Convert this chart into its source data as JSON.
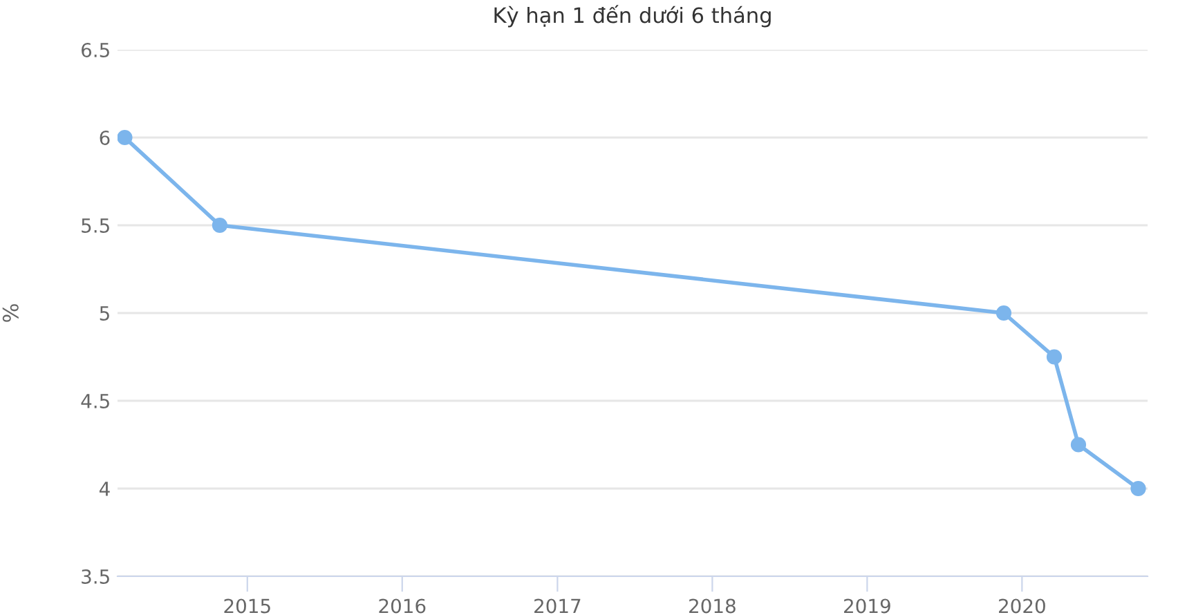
{
  "chart_data": {
    "type": "line",
    "title": "Kỳ hạn 1 đến dưới 6 tháng",
    "ylabel": "%",
    "x": [
      "2014-03-18",
      "2014-10-28",
      "2019-11-19",
      "2020-03-17",
      "2020-05-13",
      "2020-10-01"
    ],
    "series": [
      {
        "color": "#7cb5ec",
        "values": [
          6,
          5.5,
          5,
          4.75,
          4.25,
          4
        ]
      }
    ],
    "xlim": [
      "2014-03-01",
      "2020-10-23"
    ],
    "xticks": [
      {
        "value": "2015-01-01",
        "label": "2015"
      },
      {
        "value": "2016-01-01",
        "label": "2016"
      },
      {
        "value": "2017-01-01",
        "label": "2017"
      },
      {
        "value": "2018-01-01",
        "label": "2018"
      },
      {
        "value": "2019-01-01",
        "label": "2019"
      },
      {
        "value": "2020-01-01",
        "label": "2020"
      }
    ],
    "ylim": [
      3.5,
      6.5
    ],
    "yticks": [
      3.5,
      4,
      4.5,
      5,
      5.5,
      6,
      6.5
    ],
    "grid": "y",
    "marker": "circle",
    "line_style": "solid",
    "legend": false
  }
}
